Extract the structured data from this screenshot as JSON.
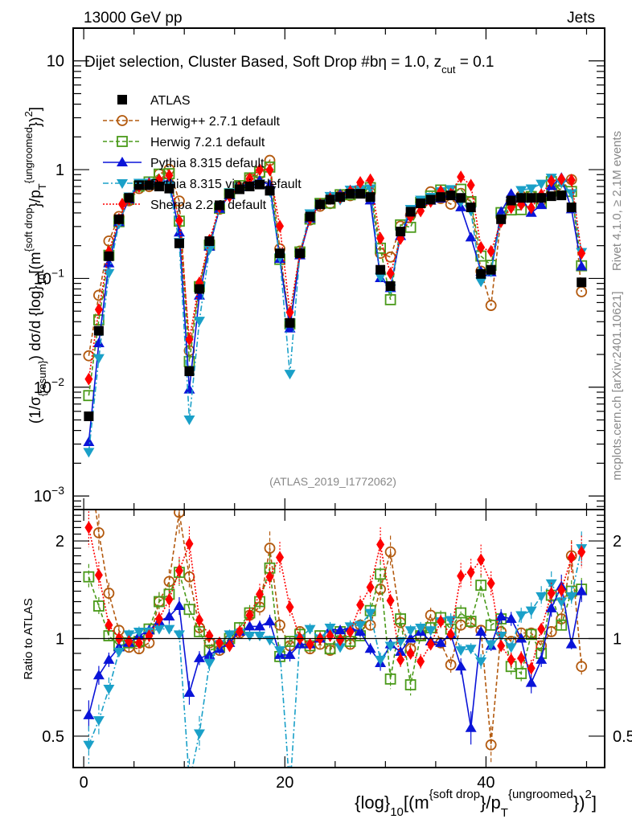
{
  "header": {
    "left": "13000 GeV pp",
    "right": "Jets"
  },
  "side_labels": {
    "rivet": "Rivet 4.1.0, ≥ 2.1M events",
    "mcplots": "mcplots.cern.ch [arXiv:2401.10621]"
  },
  "chart_data": {
    "type": "line",
    "title": "Dijet selection, Cluster Based, Soft Drop #bη = 1.0, z_cut = 0.1",
    "title_parts": {
      "main": "Dijet selection, Cluster Based, Soft Drop #bη = 1.0, z",
      "sub": "cut",
      "tail": " = 0.1"
    },
    "analysis_id": "(ATLAS_2019_I1772062)",
    "xlabel": "{log}_10[(m^{soft drop}/p_T^{ungroomed})^2]",
    "xlabel_parts": {
      "a": "{log}",
      "a_sub": "10",
      "b": "[(m",
      "b_sup": "{soft drop",
      "c": "}/p",
      "c_sup": "{ungroomed",
      "c_sub": "T",
      "d": "})",
      "d_sup": "2",
      "e": "]"
    },
    "ylabel": "(1/σ_{resum}) dσ/d {log}_10[(m^{soft drop}/p_T^{ungroomed})^2]",
    "ylabel_parts": {
      "a": "(1/σ",
      "a_sub": "{resum}",
      "b": ") dσ/d {log}",
      "b_sub": "10",
      "c": "[(m",
      "c_sup": "{soft drop",
      "d": "}/p",
      "d_sub": "T",
      "d_sup": "{ungroomed",
      "e": "})",
      "e_sup": "2",
      "f": "]"
    },
    "ratio_ylabel": "Ratio to ATLAS",
    "xlim": [
      -1.05,
      51.8
    ],
    "ylim": [
      0.00075,
      20
    ],
    "yscale": "log",
    "ratio_ylim": [
      0.4,
      2.5
    ],
    "ratio_yscale": "log",
    "x_ticks": [
      0,
      20,
      40
    ],
    "y_ticks": [
      {
        "v": 10,
        "label": "10",
        "exp": ""
      },
      {
        "v": 1,
        "label": "1",
        "exp": ""
      },
      {
        "v": 0.1,
        "label": "10",
        "exp": "−1"
      },
      {
        "v": 0.01,
        "label": "10",
        "exp": "−2"
      },
      {
        "v": 0.001,
        "label": "10",
        "exp": "−3"
      }
    ],
    "ratio_y_ticks": [
      {
        "v": 2,
        "label": "2"
      },
      {
        "v": 1,
        "label": "1"
      },
      {
        "v": 0.5,
        "label": "0.5"
      }
    ],
    "legend_position": "top-left",
    "x": [
      0.5,
      1.5,
      2.5,
      3.5,
      4.5,
      5.5,
      6.5,
      7.5,
      8.5,
      9.5,
      10.5,
      11.5,
      12.5,
      13.5,
      14.5,
      15.5,
      16.5,
      17.5,
      18.5,
      19.5,
      20.5,
      21.5,
      22.5,
      23.5,
      24.5,
      25.5,
      26.5,
      27.5,
      28.5,
      29.5,
      30.5,
      31.5,
      32.5,
      33.5,
      34.5,
      35.5,
      36.5,
      37.5,
      38.5,
      39.5,
      40.5,
      41.5,
      42.5,
      43.5,
      44.5,
      45.5,
      46.5,
      47.5,
      48.5,
      49.5
    ],
    "reference": {
      "name": "ATLAS",
      "color": "#000000",
      "marker": "square-filled",
      "values": [
        0.0054,
        0.033,
        0.16,
        0.35,
        0.55,
        0.72,
        0.72,
        0.7,
        0.67,
        0.21,
        0.014,
        0.08,
        0.22,
        0.47,
        0.6,
        0.66,
        0.7,
        0.73,
        0.64,
        0.17,
        0.039,
        0.17,
        0.37,
        0.48,
        0.53,
        0.56,
        0.6,
        0.6,
        0.56,
        0.12,
        0.085,
        0.27,
        0.41,
        0.49,
        0.53,
        0.56,
        0.58,
        0.55,
        0.45,
        0.11,
        0.12,
        0.35,
        0.52,
        0.55,
        0.55,
        0.55,
        0.57,
        0.58,
        0.45,
        0.092
      ]
    },
    "series": [
      {
        "name": "Herwig++ 2.7.1 default",
        "color": "#b35a0f",
        "marker": "circle-open",
        "line": "dashed",
        "ratio": [
          3.6,
          2.12,
          1.38,
          1.06,
          0.94,
          0.93,
          0.97,
          1.3,
          1.5,
          2.45,
          1.55,
          1.08,
          0.97,
          0.92,
          0.99,
          1.04,
          1.18,
          1.25,
          1.9,
          1.1,
          0.95,
          1.05,
          0.93,
          0.96,
          0.92,
          1.03,
          0.96,
          1.1,
          1.1,
          1.42,
          1.85,
          1.12,
          0.93,
          1.02,
          1.18,
          0.97,
          0.83,
          1.1,
          1.12,
          1.06,
          0.47,
          1.05,
          0.98,
          1.04,
          1.04,
          0.95,
          1.05,
          1.15,
          1.8,
          0.82
        ]
      },
      {
        "name": "Herwig 7.2.1 default",
        "color": "#4a9a1a",
        "marker": "square-open",
        "line": "dashed",
        "ratio": [
          1.55,
          1.26,
          1.02,
          0.95,
          0.97,
          0.98,
          1.07,
          1.3,
          1.37,
          1.6,
          1.23,
          1.05,
          0.92,
          0.94,
          1.0,
          1.08,
          1.2,
          1.3,
          1.65,
          0.88,
          0.98,
          1.03,
          0.95,
          1.02,
          0.93,
          1.05,
          0.98,
          1.02,
          1.22,
          1.58,
          0.75,
          1.15,
          0.72,
          1.02,
          1.08,
          1.16,
          1.07,
          1.2,
          1.13,
          1.46,
          1.1,
          1.15,
          0.82,
          0.78,
          1.03,
          0.9,
          1.36,
          1.1,
          1.4,
          1.42
        ]
      },
      {
        "name": "Pythia 8.315 default",
        "color": "#0a14d8",
        "marker": "triangle-up",
        "line": "solid",
        "ratio": [
          0.58,
          0.77,
          0.86,
          0.94,
          0.97,
          1.02,
          1.06,
          1.13,
          1.17,
          1.26,
          0.68,
          0.87,
          0.89,
          0.93,
          0.97,
          1.05,
          1.09,
          1.09,
          1.13,
          0.89,
          0.89,
          0.96,
          0.96,
          1.0,
          1.07,
          1.06,
          1.08,
          1.05,
          0.93,
          0.84,
          0.96,
          0.91,
          1.0,
          1.05,
          0.98,
          0.97,
          1.03,
          0.82,
          0.53,
          1.05,
          0.95,
          1.17,
          1.15,
          1.0,
          0.73,
          0.86,
          1.24,
          1.45,
          0.96,
          1.4
        ]
      },
      {
        "name": "Pythia 8.315 vincia-default",
        "color": "#1aa0c8",
        "marker": "triangle-down",
        "line": "dashdot",
        "ratio": [
          0.47,
          0.56,
          0.7,
          0.91,
          1.03,
          1.05,
          1.05,
          1.07,
          1.07,
          1.03,
          0.36,
          0.51,
          0.84,
          0.96,
          1.03,
          1.04,
          1.02,
          1.02,
          0.99,
          0.92,
          0.34,
          1.0,
          1.07,
          1.0,
          1.08,
          0.94,
          1.09,
          1.1,
          1.2,
          0.86,
          0.95,
          0.98,
          1.06,
          1.08,
          1.06,
          1.13,
          1.14,
          0.92,
          0.93,
          0.85,
          0.96,
          1.02,
          0.94,
          1.18,
          1.22,
          1.35,
          1.48,
          1.3,
          1.35,
          1.9
        ]
      },
      {
        "name": "Sherpa 2.2.9 default",
        "color": "#ff0000",
        "marker": "diamond-filled",
        "line": "dotted",
        "ratio": [
          2.2,
          1.57,
          1.1,
          1.0,
          0.98,
          0.97,
          1.02,
          1.15,
          1.32,
          1.62,
          1.96,
          1.14,
          1.02,
          0.97,
          0.95,
          1.05,
          1.18,
          1.37,
          1.55,
          1.78,
          1.25,
          1.0,
          0.96,
          1.0,
          1.02,
          0.99,
          1.05,
          1.27,
          1.44,
          1.95,
          1.31,
          0.86,
          0.9,
          0.85,
          0.96,
          1.13,
          1.03,
          1.56,
          1.6,
          1.75,
          1.48,
          0.95,
          0.86,
          0.87,
          0.81,
          1.07,
          1.38,
          1.41,
          1.78,
          1.85
        ]
      }
    ]
  }
}
